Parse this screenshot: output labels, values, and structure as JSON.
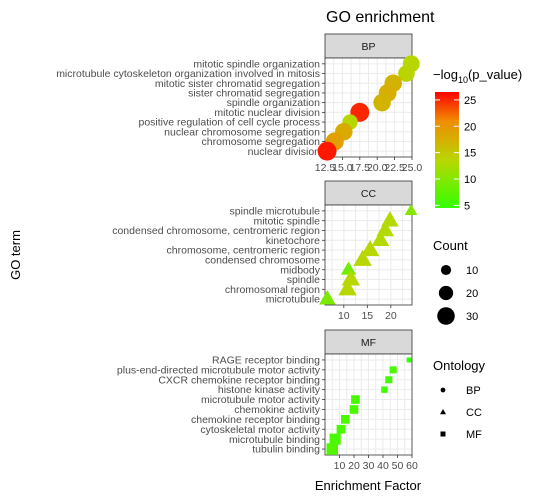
{
  "chart_data": {
    "type": "scatter",
    "title": "GO enrichment",
    "xlabel": "Enrichment Factor",
    "ylabel": "GO term",
    "panels": [
      {
        "name": "BP",
        "xlim": [
          12.5,
          25.0
        ],
        "xticks": [
          "12.5",
          "15.0",
          "17.5",
          "20.0",
          "22.5",
          "25.0"
        ],
        "shape": "circle",
        "terms": [
          {
            "term": "mitotic spindle organization",
            "x": 24.9,
            "count": 28,
            "neglog10p": 13.5
          },
          {
            "term": "microtubule cytoskeleton organization involved in mitosis",
            "x": 24.2,
            "count": 27,
            "neglog10p": 13.8
          },
          {
            "term": "mitotic sister chromatid segregation",
            "x": 22.3,
            "count": 30,
            "neglog10p": 17.0
          },
          {
            "term": "sister chromatid segregation",
            "x": 21.5,
            "count": 31,
            "neglog10p": 17.5
          },
          {
            "term": "spindle organization",
            "x": 20.7,
            "count": 30,
            "neglog10p": 17.0
          },
          {
            "term": "mitotic nuclear division",
            "x": 17.5,
            "count": 35,
            "neglog10p": 25.0
          },
          {
            "term": "positive regulation of cell cycle process",
            "x": 16.1,
            "count": 23,
            "neglog10p": 13.5
          },
          {
            "term": "nuclear chromosome segregation",
            "x": 15.2,
            "count": 30,
            "neglog10p": 18.0
          },
          {
            "term": "chromosome segregation",
            "x": 13.9,
            "count": 32,
            "neglog10p": 19.0
          },
          {
            "term": "nuclear division",
            "x": 12.8,
            "count": 35,
            "neglog10p": 25.5
          }
        ]
      },
      {
        "name": "CC",
        "xlim": [
          6.0,
          24.5
        ],
        "xticks": [
          "10",
          "15",
          "20"
        ],
        "shape": "triangle",
        "terms": [
          {
            "term": "spindle microtubule",
            "x": 24.3,
            "count": 12,
            "neglog10p": 10.0
          },
          {
            "term": "mitotic spindle",
            "x": 19.8,
            "count": 23,
            "neglog10p": 13.0
          },
          {
            "term": "condensed chromosome, centromeric region",
            "x": 18.8,
            "count": 23,
            "neglog10p": 13.0
          },
          {
            "term": "kinetochore",
            "x": 17.8,
            "count": 23,
            "neglog10p": 13.0
          },
          {
            "term": "chromosome, centromeric region",
            "x": 15.6,
            "count": 25,
            "neglog10p": 13.5
          },
          {
            "term": "condensed chromosome",
            "x": 14.0,
            "count": 25,
            "neglog10p": 13.5
          },
          {
            "term": "midbody",
            "x": 11.0,
            "count": 17,
            "neglog10p": 8.5
          },
          {
            "term": "spindle",
            "x": 11.5,
            "count": 25,
            "neglog10p": 13.5
          },
          {
            "term": "chromosomal region",
            "x": 10.8,
            "count": 25,
            "neglog10p": 13.5
          },
          {
            "term": "microtubule",
            "x": 6.5,
            "count": 20,
            "neglog10p": 9.5
          }
        ]
      },
      {
        "name": "MF",
        "xlim": [
          0,
          60
        ],
        "xticks": [
          "10",
          "20",
          "30",
          "40",
          "50",
          "60"
        ],
        "shape": "square",
        "terms": [
          {
            "term": "RAGE receptor binding",
            "x": 58,
            "count": 3,
            "neglog10p": 4.5
          },
          {
            "term": "plus-end-directed microtubule motor activity",
            "x": 47,
            "count": 6,
            "neglog10p": 6.0
          },
          {
            "term": "CXCR chemokine receptor binding",
            "x": 44,
            "count": 6,
            "neglog10p": 5.5
          },
          {
            "term": "histone kinase activity",
            "x": 41,
            "count": 5,
            "neglog10p": 5.5
          },
          {
            "term": "microtubule motor activity",
            "x": 21,
            "count": 9,
            "neglog10p": 6.0
          },
          {
            "term": "chemokine activity",
            "x": 20,
            "count": 9,
            "neglog10p": 6.0
          },
          {
            "term": "chemokine receptor binding",
            "x": 14,
            "count": 9,
            "neglog10p": 6.0
          },
          {
            "term": "cytoskeletal motor activity",
            "x": 11,
            "count": 9,
            "neglog10p": 6.0
          },
          {
            "term": "microtubule binding",
            "x": 7,
            "count": 15,
            "neglog10p": 6.0
          },
          {
            "term": "tubulin binding",
            "x": 5,
            "count": 16,
            "neglog10p": 6.5
          }
        ]
      }
    ],
    "color_legend": {
      "title_prefix": "−log",
      "title_sub": "10",
      "title_suffix": "(p_value)",
      "range": [
        4.5,
        26.5
      ],
      "ticks": [
        "25",
        "20",
        "15",
        "10",
        "5"
      ],
      "tick_values": [
        25,
        20,
        15,
        10,
        5
      ],
      "colors": [
        "#32ff00",
        "#b6d900",
        "#f08c00",
        "#ff0000"
      ]
    },
    "size_legend": {
      "title": "Count",
      "values": [
        10,
        20,
        30
      ],
      "labels": [
        "10",
        "20",
        "30"
      ]
    },
    "shape_legend": {
      "title": "Ontology",
      "labels": [
        "BP",
        "CC",
        "MF"
      ]
    },
    "grid": true,
    "legend_position": "right"
  }
}
